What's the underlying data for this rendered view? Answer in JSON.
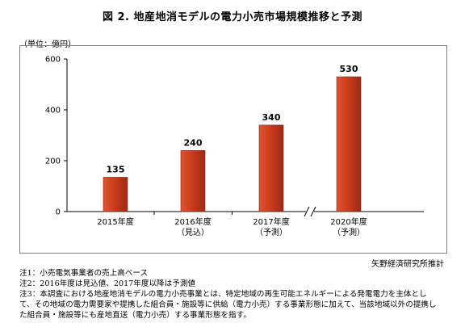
{
  "title": "図 2.  地産地消モデルの電力小売市場規模推移と予測",
  "unit_label": "（単位：億円）",
  "chart_data": {
    "type": "bar",
    "categories": [
      [
        "2015年度"
      ],
      [
        "2016年度",
        "（見込）"
      ],
      [
        "2017年度",
        "（予測）"
      ],
      [
        "2020年度",
        "（予測）"
      ]
    ],
    "values": [
      135,
      240,
      340,
      530
    ],
    "ylim": [
      0,
      600
    ],
    "yticks": [
      0,
      200,
      400,
      600
    ],
    "bar_color": "#c0392b",
    "axis_break_between": [
      2,
      3
    ]
  },
  "credit": "矢野経済研究所推計",
  "notes": [
    "注1：小売電気事業者の売上高ベース",
    "注2：2016年度は見込値、2017年度以降は予測値",
    "注3：本調査における地産地消モデルの電力小売事業とは、特定地域の再生可能エネルギーによる発電電力を主体とし",
    "て、その地域の電力需要家や提携した組合員・施設等に供給（電力小売）する事業形態に加えて、当該地域以外の提携し",
    "た組合員・施設等にも産地直送（電力小売）する事業形態を指す。"
  ]
}
